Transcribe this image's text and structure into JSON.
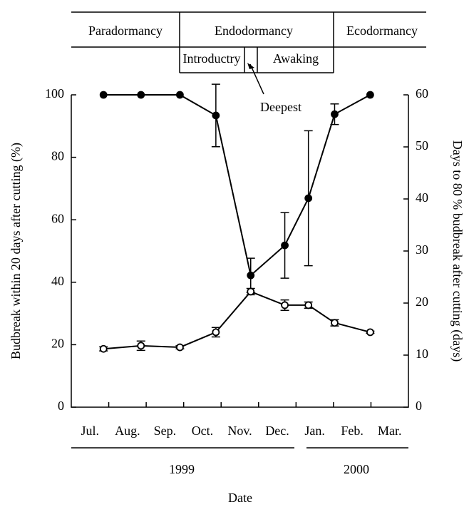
{
  "chart_data": {
    "type": "line",
    "phases": [
      "Paradormancy",
      "Endodormancy",
      "Ecodormancy"
    ],
    "subphases": [
      "Introductry",
      "Awaking"
    ],
    "annotation": "Deepest",
    "categories": [
      "Jul.",
      "Aug.",
      "Sep.",
      "Oct.",
      "Nov.",
      "Dec.",
      "Jan.",
      "Feb.",
      "Mar."
    ],
    "years": [
      "1999",
      "2000"
    ],
    "xlabel": "Date",
    "ylabel": "Budbreak within 20 days after cutting (%)",
    "y2label": "Days to 80 % budbreak after cutting (days)",
    "x": [
      0.86,
      1.86,
      2.9,
      3.86,
      4.79,
      5.7,
      6.33,
      7.03,
      7.98
    ],
    "xlim": [
      0,
      9
    ],
    "ylim": [
      0,
      100
    ],
    "yticks": [
      0,
      20,
      40,
      60,
      80,
      100
    ],
    "y2lim": [
      0,
      60
    ],
    "y2ticks": [
      0,
      10,
      20,
      30,
      40,
      50,
      60
    ],
    "series": [
      {
        "color": "#000000",
        "marker": "filled",
        "values": [
          100,
          100,
          100,
          93.4,
          42.2,
          51.8,
          66.9,
          93.8,
          100
        ],
        "errors": [
          0,
          0,
          0,
          10,
          5.5,
          10.5,
          21.6,
          3.3,
          0
        ]
      },
      {
        "color": "#000000",
        "marker": "open",
        "axis": "y2",
        "values": [
          11.2,
          11.8,
          11.5,
          14.4,
          22.2,
          19.6,
          19.6,
          16.2,
          14.4
        ],
        "errors": [
          0.4,
          0.9,
          0.3,
          0.9,
          0.6,
          1.0,
          0.6,
          0.6,
          0.2
        ]
      }
    ]
  }
}
